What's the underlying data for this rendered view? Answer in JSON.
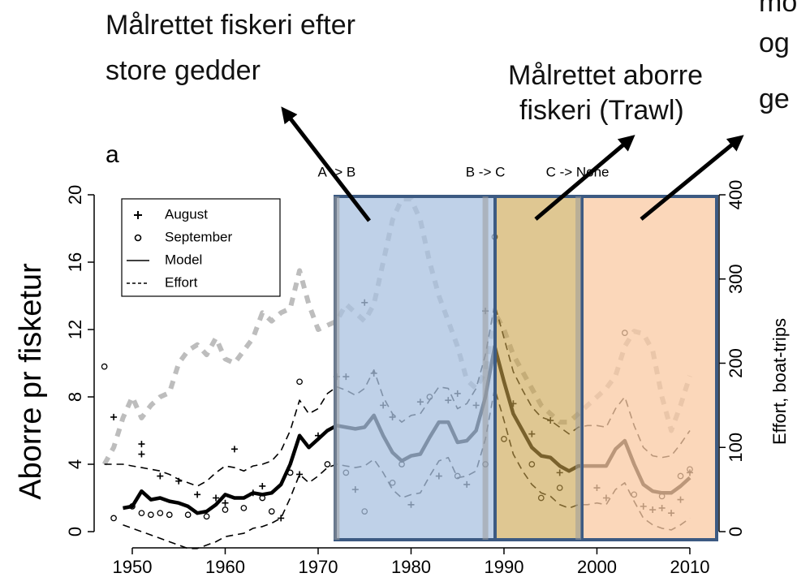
{
  "chart_data": {
    "type": "line",
    "panel_label": "a",
    "y_label": "Aborre pr fisketur",
    "y2_label": "Effort, boat-trips",
    "annotations": [
      "Målrettet fiskeri efter",
      "store gedder",
      "Målrettet aborre",
      "fiskeri (Trawl)",
      "mo",
      "og",
      "ge"
    ],
    "transitions": [
      {
        "label": "A -> B",
        "x": 1972
      },
      {
        "label": "B -> C",
        "x": 1988
      },
      {
        "label": "C -> None",
        "x": 1998
      }
    ],
    "xlim": [
      1946.5,
      2012.5
    ],
    "xticks": [
      1950,
      1960,
      1970,
      1980,
      1990,
      2000,
      2010
    ],
    "ylim": [
      0,
      20
    ],
    "yticks": [
      0,
      4,
      8,
      12,
      16,
      20
    ],
    "y2lim": [
      0,
      400
    ],
    "y2ticks": [
      0,
      100,
      200,
      300,
      400
    ],
    "x": [
      1947,
      1948,
      1949,
      1950,
      1951,
      1952,
      1953,
      1954,
      1955,
      1956,
      1957,
      1958,
      1959,
      1960,
      1961,
      1962,
      1963,
      1964,
      1965,
      1966,
      1967,
      1968,
      1969,
      1970,
      1971,
      1972,
      1973,
      1974,
      1975,
      1976,
      1977,
      1978,
      1979,
      1980,
      1981,
      1982,
      1983,
      1984,
      1985,
      1986,
      1987,
      1988,
      1989,
      1990,
      1991,
      1992,
      1993,
      1994,
      1995,
      1996,
      1997,
      1998,
      1999,
      2000,
      2001,
      2002,
      2003,
      2004,
      2005,
      2006,
      2007,
      2008,
      2009,
      2010
    ],
    "series": [
      {
        "name": "August",
        "marker": "+",
        "color": "#000",
        "x": [
          1948,
          1951,
          1951,
          1953,
          1955,
          1957,
          1959,
          1960,
          1963,
          1964,
          1961,
          1966,
          1968,
          1970,
          1972,
          1973,
          1975,
          1976,
          1977,
          1978,
          1981,
          1983,
          1984,
          1985,
          1986,
          1987,
          1988,
          1991,
          1993,
          1995,
          1996,
          2000,
          2001,
          2005,
          2006,
          2007,
          2008,
          2009,
          2010,
          1980,
          1974
        ],
        "values": [
          6.8,
          5.2,
          4.6,
          3.3,
          3.0,
          2.2,
          2.0,
          1.7,
          2.3,
          2.7,
          4.9,
          0.8,
          3.4,
          5.7,
          9.2,
          9.2,
          13.6,
          9.4,
          7.5,
          6.8,
          7.7,
          3.3,
          7.8,
          8.2,
          2.8,
          7.5,
          13.1,
          7.6,
          5.8,
          6.6,
          3.5,
          2.6,
          2.0,
          1.5,
          1.3,
          1.4,
          1.1,
          1.9,
          3.5,
          1.6,
          2.5
        ]
      },
      {
        "name": "September",
        "marker": "o",
        "color": "#000",
        "x": [
          1947,
          1948,
          1950,
          1951,
          1952,
          1953,
          1954,
          1956,
          1958,
          1960,
          1962,
          1964,
          1965,
          1967,
          1968,
          1971,
          1973,
          1975,
          1978,
          1979,
          1982,
          1985,
          1988,
          1989,
          1990,
          1993,
          1994,
          1996,
          2003,
          2004,
          2007,
          2009,
          2010
        ],
        "values": [
          9.8,
          0.8,
          1.5,
          1.1,
          1.0,
          1.1,
          1.0,
          1.0,
          0.9,
          1.3,
          1.4,
          2.0,
          1.2,
          3.5,
          8.9,
          4.0,
          3.5,
          1.2,
          2.9,
          4.0,
          8.0,
          3.3,
          4.0,
          17.5,
          5.5,
          4.0,
          2.0,
          2.6,
          11.8,
          2.2,
          2.1,
          3.3,
          3.7
        ]
      },
      {
        "name": "Model",
        "line": "solid",
        "color": "#000",
        "values": [
          null,
          null,
          1.4,
          1.5,
          2.4,
          1.9,
          2.0,
          1.8,
          1.7,
          1.5,
          1.1,
          1.2,
          1.6,
          2.2,
          2.0,
          2.0,
          2.3,
          2.2,
          2.3,
          2.8,
          4.0,
          5.7,
          5.0,
          5.5,
          6.0,
          6.3,
          6.2,
          6.1,
          6.2,
          6.9,
          5.7,
          4.7,
          4.2,
          4.5,
          4.6,
          5.6,
          6.5,
          6.5,
          5.3,
          5.4,
          6.0,
          8.0,
          11.0,
          8.9,
          7.0,
          6.0,
          5.0,
          4.5,
          4.4,
          3.9,
          3.6,
          3.9,
          3.9,
          3.9,
          3.9,
          4.9,
          5.4,
          4.0,
          2.8,
          2.4,
          2.3,
          2.3,
          2.7,
          3.2
        ]
      },
      {
        "name": "Effort",
        "line": "dotted",
        "color": "#bdbdbd",
        "axis": "y2",
        "values": [
          80,
          100,
          135,
          160,
          135,
          150,
          160,
          165,
          200,
          215,
          222,
          210,
          230,
          205,
          200,
          215,
          230,
          260,
          250,
          260,
          265,
          310,
          270,
          240,
          245,
          250,
          270,
          260,
          250,
          270,
          320,
          370,
          395,
          395,
          370,
          320,
          280,
          250,
          220,
          180,
          170,
          190,
          260,
          240,
          210,
          190,
          170,
          150,
          140,
          130,
          130,
          140,
          150,
          160,
          170,
          185,
          220,
          238,
          235,
          215,
          160,
          120,
          150,
          185
        ]
      },
      {
        "line": "dashed",
        "color": "#000",
        "values": [
          4.0,
          4.0,
          4.0,
          3.9,
          3.8,
          3.7,
          3.6,
          3.4,
          3.1,
          2.9,
          2.7,
          3.0,
          3.5,
          3.9,
          3.8,
          3.6,
          3.9,
          4.0,
          4.2,
          4.8,
          6.0,
          7.8,
          7.0,
          7.3,
          8.2,
          8.6,
          8.4,
          8.1,
          8.5,
          9.6,
          8.0,
          7.0,
          6.5,
          6.9,
          7.0,
          7.8,
          8.6,
          8.5,
          7.3,
          7.6,
          8.5,
          10.5,
          13.5,
          11.5,
          9.5,
          8.4,
          7.4,
          6.8,
          6.6,
          6.2,
          5.8,
          6.2,
          6.3,
          6.3,
          6.2,
          7.3,
          8.0,
          6.3,
          5.0,
          4.5,
          4.4,
          4.5,
          5.2,
          6.0
        ]
      },
      {
        "line": "dashed",
        "color": "#000",
        "values": [
          null,
          null,
          0.4,
          0.2,
          0.0,
          -0.2,
          -0.4,
          -0.6,
          -0.8,
          -1.0,
          -1.0,
          -0.8,
          -0.6,
          -0.3,
          -0.2,
          -0.1,
          0.2,
          0.3,
          0.5,
          0.8,
          2.0,
          3.4,
          2.9,
          3.3,
          3.8,
          4.0,
          3.9,
          3.8,
          3.9,
          4.3,
          3.5,
          2.5,
          2.0,
          2.2,
          2.3,
          3.3,
          4.2,
          4.4,
          3.2,
          3.3,
          3.6,
          5.5,
          8.5,
          6.6,
          4.6,
          3.6,
          2.8,
          2.3,
          2.1,
          1.6,
          1.4,
          1.6,
          1.6,
          1.7,
          1.6,
          2.5,
          2.9,
          1.8,
          0.8,
          0.4,
          0.2,
          0.1,
          0.4,
          0.8
        ]
      }
    ]
  }
}
